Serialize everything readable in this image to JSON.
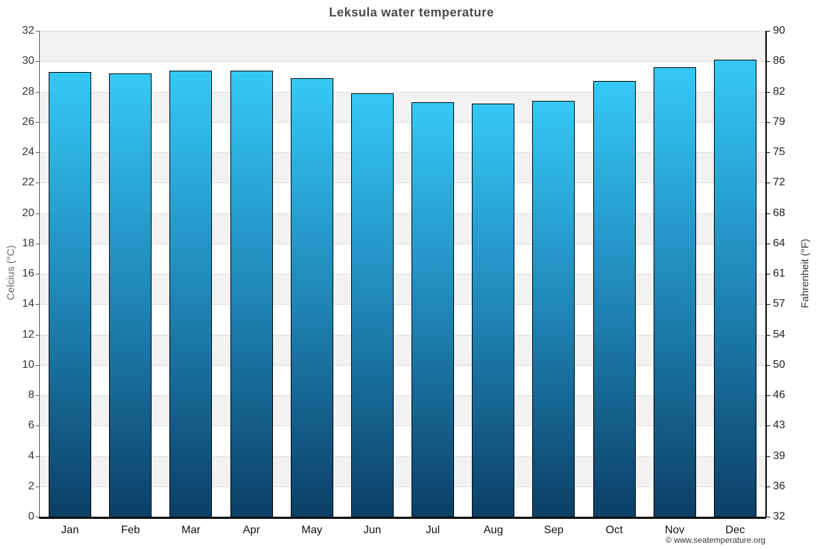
{
  "header": {
    "title": "Leksula water temperature"
  },
  "footer": {
    "credit": "© www.seatemperature.org"
  },
  "chart_data": {
    "type": "bar",
    "title": "Leksula water temperature",
    "categories": [
      "Jan",
      "Feb",
      "Mar",
      "Apr",
      "May",
      "Jun",
      "Jul",
      "Aug",
      "Sep",
      "Oct",
      "Nov",
      "Dec"
    ],
    "values": [
      29.3,
      29.2,
      29.4,
      29.4,
      28.9,
      27.9,
      27.3,
      27.2,
      27.4,
      28.7,
      29.6,
      30.1
    ],
    "unit": "°C",
    "ylabel_left": "Celcius (°C)",
    "ylabel_right": "Fahrenheit (°F)",
    "yticks_left": [
      32,
      30,
      28,
      26,
      24,
      22,
      20,
      18,
      16,
      14,
      12,
      10,
      8,
      6,
      4,
      2,
      0
    ],
    "yticks_right": [
      90,
      86,
      82,
      79,
      75,
      72,
      68,
      64,
      61,
      57,
      54,
      50,
      46,
      43,
      39,
      36,
      32
    ],
    "ylim": [
      0,
      32
    ],
    "grid": "alternating horizontal bands every 2 degrees, gray band first at top",
    "legend": "none",
    "colors": {
      "bar_gradient_top": "#35c9f6",
      "bar_gradient_mid": "#1f86b8",
      "bar_gradient_bottom": "#0b3f66",
      "bar_border": "#000000",
      "band_gray": "#f2f2f2",
      "band_white": "#ffffff",
      "gridline": "#dcdcdc",
      "title_color": "#4a4a4a",
      "left_axis_line": "#555555",
      "right_axis_line": "#000000",
      "bottom_axis_line": "#000000"
    }
  }
}
